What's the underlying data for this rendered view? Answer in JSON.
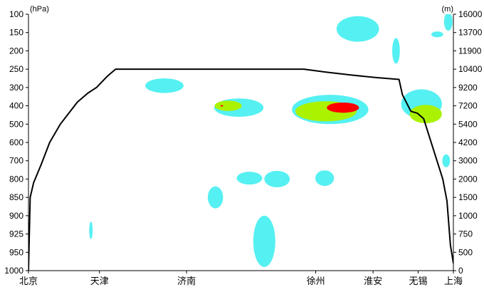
{
  "chart_data": {
    "type": "area",
    "title": "",
    "xlabel": "",
    "left_unit": "(hPa)",
    "right_unit": "(m)",
    "left_ticks": [
      "100",
      "150",
      "200",
      "250",
      "300",
      "400",
      "500",
      "600",
      "700",
      "800",
      "850",
      "900",
      "925",
      "950",
      "1000"
    ],
    "right_ticks": [
      "16000",
      "13700",
      "11900",
      "10400",
      "9200",
      "7200",
      "5400",
      "4200",
      "3000",
      "2000",
      "1500",
      "1000",
      "750",
      "500",
      "0"
    ],
    "categories": [
      "北京",
      "天津",
      "济南",
      "徐州",
      "淮安",
      "无锡",
      "上海"
    ],
    "category_positions": [
      0.0,
      0.167,
      0.372,
      0.676,
      0.811,
      0.917,
      1.0
    ],
    "colors": {
      "light": "#55f0f2",
      "medium": "#aaf200",
      "strong": "#ff0000",
      "line": "#000000"
    },
    "flight_profile": {
      "x": [
        0.0,
        0.004,
        0.012,
        0.03,
        0.05,
        0.075,
        0.095,
        0.115,
        0.14,
        0.16,
        0.185,
        0.205,
        0.22,
        0.235,
        0.25,
        0.3,
        0.4,
        0.5,
        0.6,
        0.648,
        0.7,
        0.76,
        0.82,
        0.872,
        0.88,
        0.9,
        0.915,
        0.93,
        0.96,
        0.975,
        0.985,
        0.993,
        1.0
      ],
      "y": [
        1000,
        850,
        810,
        720,
        600,
        500,
        440,
        380,
        330,
        300,
        270,
        250,
        250,
        250,
        250,
        250,
        250,
        250,
        250,
        250,
        258,
        266,
        273,
        278,
        340,
        430,
        440,
        470,
        690,
        800,
        860,
        940,
        980
      ]
    },
    "shear_regions": [
      {
        "level": "light",
        "cx": 0.495,
        "cy": 410,
        "rx": 0.058,
        "ry": 50
      },
      {
        "level": "light",
        "cx": 0.71,
        "cy": 420,
        "rx": 0.09,
        "ry": 80
      },
      {
        "level": "light",
        "cx": 0.925,
        "cy": 390,
        "rx": 0.048,
        "ry": 80
      },
      {
        "level": "light",
        "cx": 0.32,
        "cy": 295,
        "rx": 0.045,
        "ry": 25
      },
      {
        "level": "light",
        "cx": 0.775,
        "cy": 140,
        "rx": 0.05,
        "ry": 35
      },
      {
        "level": "light",
        "cx": 0.52,
        "cy": 795,
        "rx": 0.03,
        "ry": 25
      },
      {
        "level": "light",
        "cx": 0.585,
        "cy": 800,
        "rx": 0.03,
        "ry": 30
      },
      {
        "level": "light",
        "cx": 0.697,
        "cy": 795,
        "rx": 0.022,
        "ry": 30
      },
      {
        "level": "light",
        "cx": 0.44,
        "cy": 850,
        "rx": 0.018,
        "ry": 30
      },
      {
        "level": "light",
        "cx": 0.555,
        "cy": 935,
        "rx": 0.026,
        "ry": 45
      },
      {
        "level": "light",
        "cx": 0.865,
        "cy": 200,
        "rx": 0.009,
        "ry": 35
      },
      {
        "level": "light",
        "cx": 0.988,
        "cy": 120,
        "rx": 0.01,
        "ry": 30
      },
      {
        "level": "light",
        "cx": 0.962,
        "cy": 155,
        "rx": 0.014,
        "ry": 8
      },
      {
        "level": "light",
        "cx": 0.983,
        "cy": 700,
        "rx": 0.009,
        "ry": 35
      },
      {
        "level": "light",
        "cx": 0.147,
        "cy": 920,
        "rx": 0.004,
        "ry": 12
      },
      {
        "level": "medium",
        "cx": 0.47,
        "cy": 400,
        "rx": 0.032,
        "ry": 28
      },
      {
        "level": "medium",
        "cx": 0.7,
        "cy": 430,
        "rx": 0.072,
        "ry": 55
      },
      {
        "level": "medium",
        "cx": 0.935,
        "cy": 445,
        "rx": 0.038,
        "ry": 50
      },
      {
        "level": "strong",
        "cx": 0.74,
        "cy": 410,
        "rx": 0.038,
        "ry": 28
      },
      {
        "level": "strong",
        "cx": 0.455,
        "cy": 400,
        "rx": 0.003,
        "ry": 4
      }
    ]
  }
}
